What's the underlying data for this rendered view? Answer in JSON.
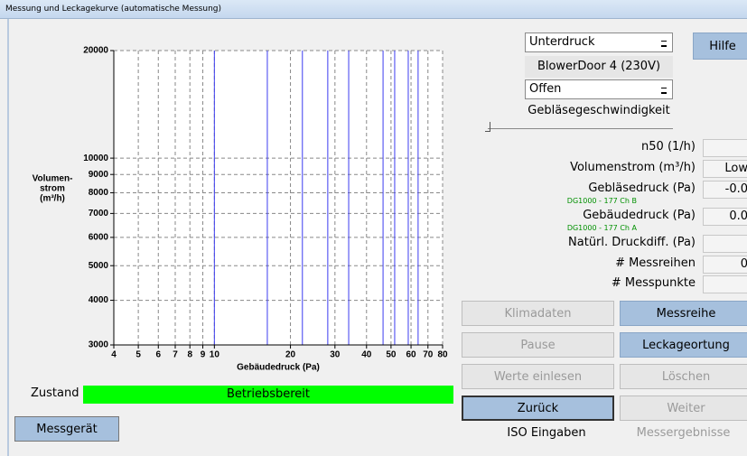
{
  "window": {
    "title": "Messung und Leckagekurve (automatische Messung)"
  },
  "chart_data": {
    "type": "vlines",
    "ylabel_lines": [
      "Volumen-",
      "strom",
      "(m³/h)"
    ],
    "xlabel": "Gebäudedruck (Pa)",
    "xscale": "log",
    "yscale": "log",
    "xlim": [
      4,
      80
    ],
    "ylim": [
      3000,
      20000
    ],
    "xticks": [
      4,
      5,
      6,
      7,
      8,
      9,
      10,
      20,
      30,
      40,
      50,
      60,
      70,
      80
    ],
    "yticks": [
      3000,
      4000,
      5000,
      6000,
      7000,
      8000,
      9000,
      10000,
      20000
    ],
    "grid": true,
    "x": [
      10,
      16.2,
      22.3,
      28.1,
      34,
      46.5,
      51.7,
      58.5,
      64
    ],
    "color": "#3c3cf0"
  },
  "controls": {
    "mode": "Unterdruck",
    "device": "BlowerDoor 4 (230V)",
    "state": "Offen",
    "help": "Hilfe",
    "speed_label": "Gebläsegeschwindigkeit"
  },
  "readouts": [
    {
      "label": "n50 (1/h)"
    },
    {
      "label": "Volumenstrom (m³/h)",
      "value": "Low"
    },
    {
      "label": "Gebläsedruck (Pa)",
      "value": "-0.0",
      "sublabel": "DG1000 - 177 Ch B"
    },
    {
      "label": "Gebäudedruck (Pa)",
      "value": "0.0",
      "sublabel": "DG1000 - 177 Ch A"
    },
    {
      "label": "Natürl. Druckdiff. (Pa)"
    },
    {
      "label": "# Messreihen",
      "value": "0"
    },
    {
      "label": "# Messpunkte"
    }
  ],
  "buttons": [
    [
      "Klimadaten",
      "Messreihe"
    ],
    [
      "Pause",
      "Leckageortung"
    ],
    [
      "Werte einlesen",
      "Löschen"
    ],
    [
      "Zurück",
      "Weiter"
    ]
  ],
  "footer": [
    "ISO Eingaben",
    "Messergebnisse"
  ],
  "status": {
    "label": "Zustand",
    "value": "Betriebsbereit"
  },
  "device_button": "Messgerät"
}
